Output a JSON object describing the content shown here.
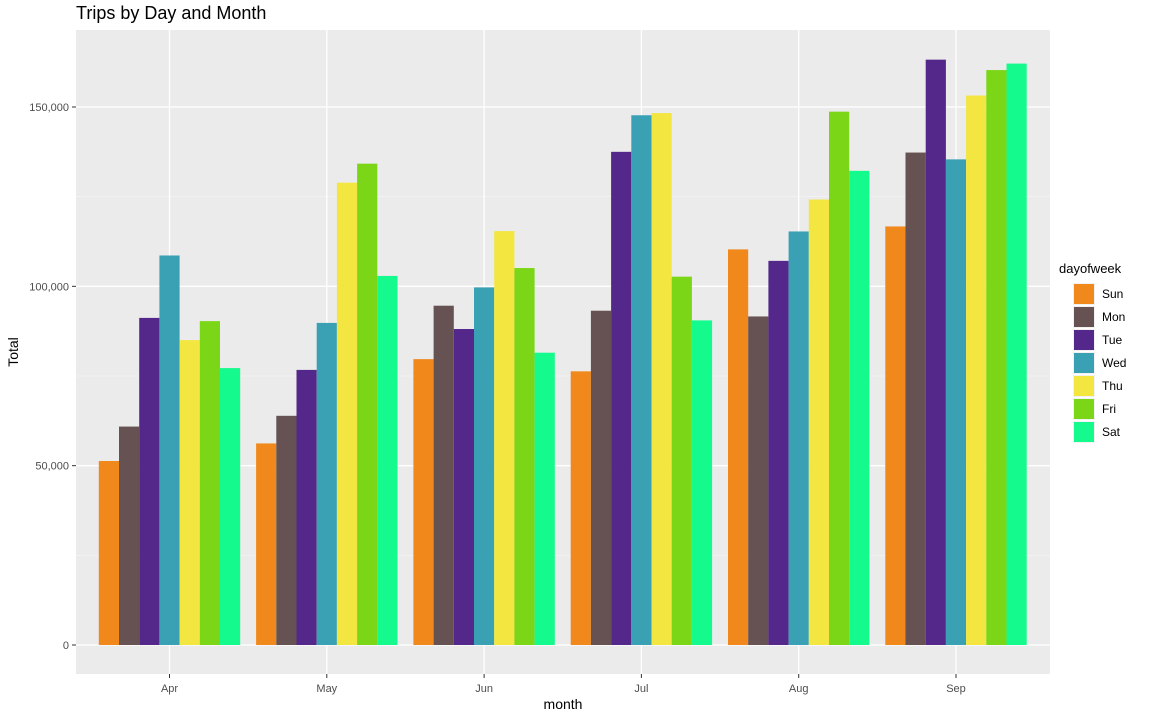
{
  "chart_data": {
    "type": "bar",
    "title": "Trips by Day and Month",
    "xlabel": "month",
    "ylabel": "Total",
    "categories": [
      "Apr",
      "May",
      "Jun",
      "Jul",
      "Aug",
      "Sep"
    ],
    "ylim": [
      0,
      170000
    ],
    "yticks": [
      0,
      50000,
      100000,
      150000
    ],
    "ytick_labels": [
      "0",
      "50,000",
      "100,000",
      "150,000"
    ],
    "grid": true,
    "legend_title": "dayofweek",
    "legend_position": "right",
    "series": [
      {
        "name": "Sun",
        "color": "#f0881c",
        "values": [
          51300,
          56200,
          79700,
          76300,
          110300,
          116700
        ]
      },
      {
        "name": "Mon",
        "color": "#665252",
        "values": [
          60900,
          63900,
          94600,
          93200,
          91600,
          137300
        ]
      },
      {
        "name": "Tue",
        "color": "#54288a",
        "values": [
          91200,
          76700,
          88100,
          137500,
          107100,
          163200
        ]
      },
      {
        "name": "Wed",
        "color": "#3aa1b5",
        "values": [
          108600,
          89800,
          99700,
          147700,
          115300,
          135400
        ]
      },
      {
        "name": "Thu",
        "color": "#f3e640",
        "values": [
          85000,
          128900,
          115400,
          148300,
          124200,
          153200
        ]
      },
      {
        "name": "Fri",
        "color": "#7bd618",
        "values": [
          90300,
          134200,
          105100,
          102700,
          148700,
          160300
        ]
      },
      {
        "name": "Sat",
        "color": "#14fa8c",
        "values": [
          77200,
          102900,
          81500,
          90500,
          132200,
          162100
        ]
      }
    ]
  }
}
